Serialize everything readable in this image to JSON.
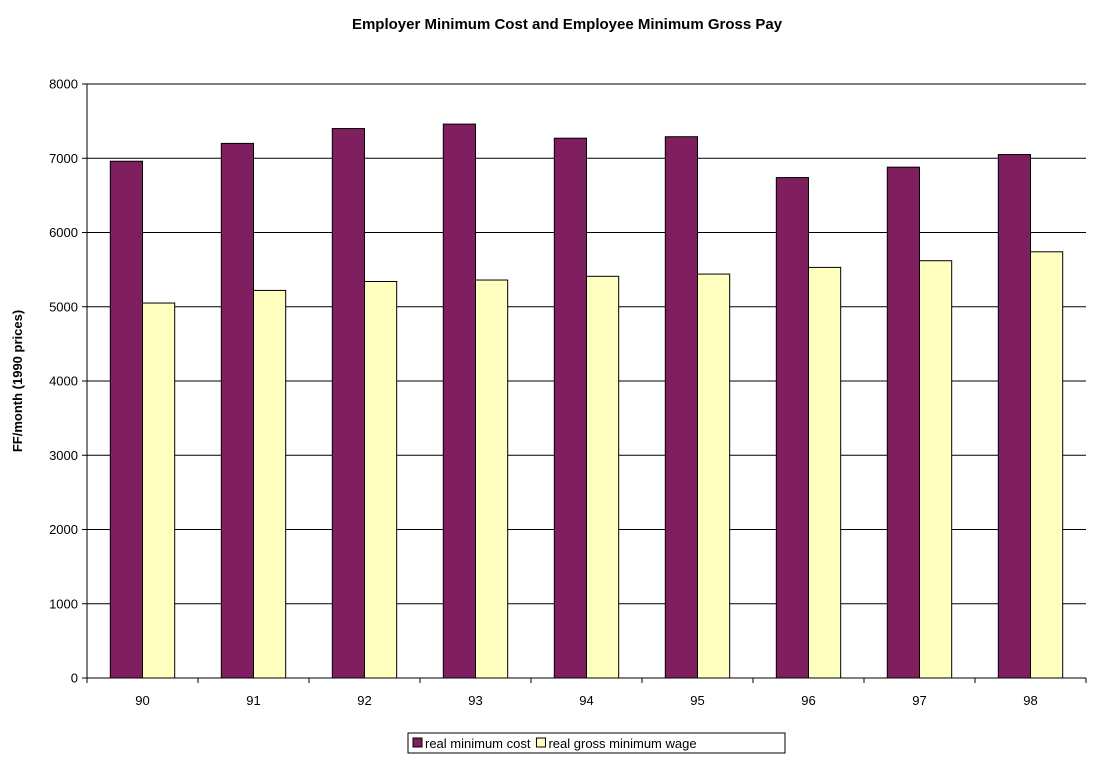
{
  "chart_data": {
    "type": "bar",
    "title": "Employer Minimum Cost and Employee Minimum Gross Pay",
    "xlabel": "",
    "ylabel": "FF/month (1990 prices)",
    "ylim": [
      0,
      8000
    ],
    "yticks": [
      "0",
      "1000",
      "2000",
      "3000",
      "4000",
      "5000",
      "6000",
      "7000",
      "8000"
    ],
    "categories": [
      "90",
      "91",
      "92",
      "93",
      "94",
      "95",
      "96",
      "97",
      "98"
    ],
    "series": [
      {
        "name": "real minimum cost",
        "color": "#7f1f5f",
        "values": [
          6960,
          7200,
          7400,
          7460,
          7270,
          7290,
          6740,
          6880,
          7050
        ]
      },
      {
        "name": "real gross minimum wage",
        "color": "#ffffc0",
        "values": [
          5050,
          5220,
          5340,
          5360,
          5410,
          5440,
          5530,
          5620,
          5740
        ]
      }
    ],
    "grid": true,
    "legend_position": "bottom"
  }
}
